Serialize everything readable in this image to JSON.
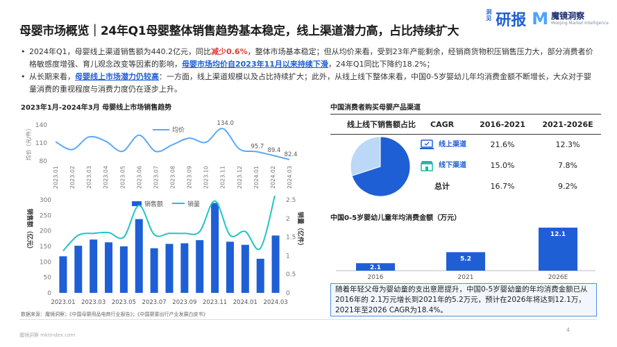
{
  "title": "母婴市场概览｜24年Q1母婴整体销售趋势基本稳定，线上渠道潜力高，占比持续扩大",
  "logo": {
    "yanbao_small": "洞见",
    "yanbao": "研报",
    "mj_letter": "M",
    "mj_name": "魔镜洞察",
    "mj_sub": "Moojing Market Intelligence"
  },
  "bullets": {
    "b1_p1": "2024年Q1，母婴线上渠道销售额为440.2亿元，同比",
    "b1_red": "减少0.6%",
    "b1_p2": "，整体市场基本稳定；但从均价来看，受到23年产能剩余，经销商货物积压销售压力大，部分消费者价格敏感度增强、育儿观念改变等因素的影响，",
    "b1_blue": "母婴市场均价自2023年11月以来持续下滑",
    "b1_p3": "，24年Q1同比下降约18.2%；",
    "b2_p1": "从长期来看，",
    "b2_blue": "母婴线上市场潜力仍较高",
    "b2_p2": "：一方面，线上渠道规模以及占比持续扩大；此外，从线上线下整体来看，中国0-5岁婴幼儿年均消费金额不断增长，大众对于婴童消费的重视程度与消费力度仍在逐步上升。"
  },
  "left_title": "2023年1月-2024年3月 母婴线上市场销售趋势",
  "channel_title": "中国消费者购买母婴产品渠道",
  "spend_title": "中国0-5岁婴幼儿童年均消费金额（万元）",
  "colors": {
    "primary": "#1e5fd6",
    "light": "#5aa9f5",
    "pie_online": "#1e5fd6",
    "pie_offline": "#bcd8f7"
  },
  "table": {
    "headers": [
      "线上线下销售额占比",
      "CAGR",
      "2016-2021",
      "2021-2026E"
    ],
    "rows": [
      {
        "icon": "laptop-icon",
        "label": "线上渠道",
        "c1": "21.6%",
        "c2": "12.3%"
      },
      {
        "icon": "store-icon",
        "label": "线下渠道",
        "c1": "15.0%",
        "c2": "7.8%"
      },
      {
        "icon": "",
        "label": "总计",
        "c1": "16.7%",
        "c2": "9.2%"
      }
    ]
  },
  "textbox": "随着年轻父母为婴幼童的支出意愿提升，中国0-5岁婴幼童的年均消费金额已从2016年的 2.1万元增长到2021年的5.2万元，预计在2026年将达到12.1万，2021年至2026 CAGR为18.4%。",
  "footnote": "数据来源：魔镜洞察；《中国母婴用品电商行业报告》；《中国婴童出行产业发展白皮书》",
  "site": "魔镜洞察 mktindex.com",
  "page_number": "4",
  "chart_data": [
    {
      "type": "line",
      "title": "",
      "ylabel": "均价（元/件）",
      "series": [
        {
          "name": "均价",
          "values": [
            112,
            99,
            120,
            113,
            96,
            123,
            96,
            107,
            118,
            111,
            134,
            100,
            95.7,
            89.4,
            82.4
          ]
        }
      ],
      "categories": [
        "2023.01",
        "2023.02",
        "2023.03",
        "2023.04",
        "2023.05",
        "2023.06",
        "2023.07",
        "2023.08",
        "2023.09",
        "2023.10",
        "2023.11",
        "2023.12",
        "2024.01",
        "2024.02",
        "2024.03"
      ],
      "data_labels": [
        {
          "index": 10,
          "text": "134.0"
        },
        {
          "index": 12,
          "text": "95.7"
        },
        {
          "index": 13,
          "text": "89.4"
        },
        {
          "index": 14,
          "text": "82.4"
        }
      ],
      "ylim": [
        80,
        140
      ],
      "yticks": [
        "80",
        "110",
        "140"
      ]
    },
    {
      "type": "bar",
      "categories": [
        "2023.01",
        "2023.02",
        "2023.03",
        "2023.04",
        "2023.05",
        "2023.06",
        "2023.07",
        "2023.08",
        "2023.09",
        "2023.10",
        "2023.11",
        "2023.12",
        "2024.01",
        "2024.02",
        "2024.03"
      ],
      "xtick_labels": [
        "2023.01",
        "2023.03",
        "2023.05",
        "2023.07",
        "2023.09",
        "2023.11",
        "2024.01",
        "2024.03"
      ],
      "series": [
        {
          "name": "销售额",
          "type": "bar",
          "axis": "left",
          "values": [
            118,
            152,
            172,
            163,
            150,
            238,
            144,
            158,
            160,
            170,
            290,
            165,
            155,
            110,
            185
          ]
        },
        {
          "name": "销量",
          "type": "line",
          "axis": "right",
          "values": [
            1.13,
            1.55,
            1.6,
            1.62,
            1.5,
            2.35,
            1.57,
            1.6,
            1.6,
            1.65,
            2.47,
            1.55,
            1.65,
            1.2,
            2.7
          ]
        }
      ],
      "ylabel_left": "销售额（亿元）",
      "ylabel_right": "销量（亿件）",
      "ylim_left": [
        0,
        300
      ],
      "ylim_right": [
        0,
        2.5
      ],
      "yticks_left": [
        "0",
        "50",
        "100",
        "150",
        "200",
        "250",
        "300"
      ],
      "yticks_right": [
        "0",
        "0.5",
        "1",
        "1.5",
        "2",
        "2.5"
      ]
    },
    {
      "type": "pie",
      "labels": [
        "线上渠道",
        "线下渠道"
      ],
      "values": [
        70,
        30
      ]
    },
    {
      "type": "bar",
      "title": "中国0-5岁婴幼儿童年均消费金额（万元）",
      "categories": [
        "2016",
        "2021",
        "2026E"
      ],
      "values": [
        2.1,
        5.2,
        12.1
      ]
    }
  ]
}
